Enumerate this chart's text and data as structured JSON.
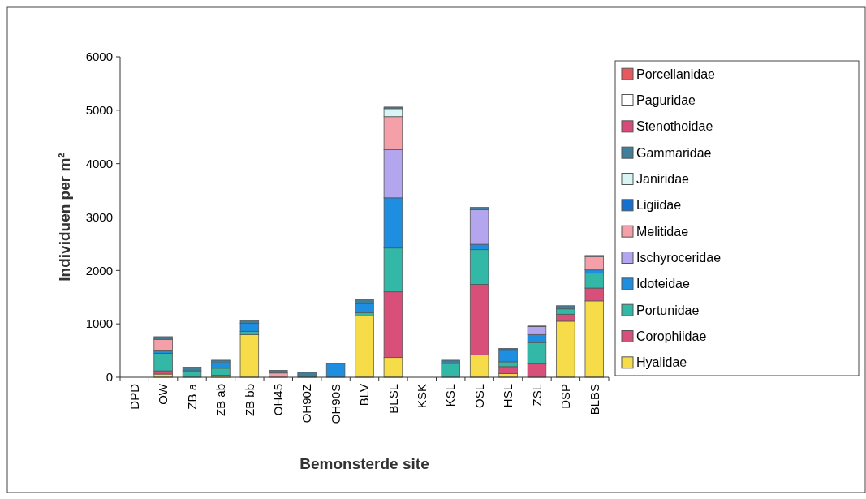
{
  "chart_data": {
    "type": "bar",
    "stacked": true,
    "xlabel": "Bemonsterde site",
    "ylabel": "Individuen per m²",
    "legend": "right",
    "grid": false,
    "categories": [
      "DPD",
      "OW",
      "ZB a",
      "ZB ab",
      "ZB bb",
      "OH45",
      "OH90Z",
      "OH90S",
      "BLV",
      "BLSL",
      "KSK",
      "KSL",
      "OSL",
      "HSL",
      "ZSL",
      "DSP",
      "BLBS"
    ],
    "ylim": [
      0,
      6000
    ],
    "yticks": [
      0,
      1000,
      2000,
      3000,
      4000,
      5000,
      6000
    ],
    "series": [
      {
        "name": "Hyalidae",
        "color": "#f7dc4a",
        "values": [
          0,
          60,
          0,
          40,
          800,
          0,
          0,
          0,
          1150,
          370,
          0,
          0,
          420,
          70,
          0,
          1050,
          1430
        ]
      },
      {
        "name": "Corophiidae",
        "color": "#d8507a",
        "values": [
          0,
          60,
          0,
          0,
          0,
          0,
          0,
          0,
          0,
          1230,
          0,
          0,
          1320,
          130,
          250,
          130,
          240
        ]
      },
      {
        "name": "Portunidae",
        "color": "#33b8a8",
        "values": [
          0,
          330,
          120,
          130,
          60,
          0,
          0,
          0,
          60,
          820,
          0,
          260,
          650,
          90,
          400,
          100,
          280
        ]
      },
      {
        "name": "Idoteidae",
        "color": "#1e8ee0",
        "values": [
          0,
          60,
          0,
          100,
          150,
          0,
          0,
          250,
          170,
          940,
          0,
          0,
          100,
          230,
          150,
          0,
          60
        ]
      },
      {
        "name": "Ischyroceridae",
        "color": "#b4a6ee",
        "values": [
          0,
          0,
          0,
          0,
          0,
          0,
          0,
          0,
          0,
          900,
          0,
          0,
          650,
          0,
          150,
          0,
          0
        ]
      },
      {
        "name": "Melitidae",
        "color": "#f5a0a8",
        "values": [
          0,
          200,
          0,
          0,
          0,
          80,
          0,
          0,
          0,
          620,
          0,
          0,
          0,
          0,
          0,
          0,
          250
        ]
      },
      {
        "name": "Ligiidae",
        "color": "#1570d0",
        "values": [
          0,
          0,
          0,
          0,
          0,
          0,
          0,
          0,
          0,
          0,
          0,
          0,
          0,
          0,
          0,
          0,
          0
        ]
      },
      {
        "name": "Janiridae",
        "color": "#d8f4f4",
        "values": [
          0,
          0,
          0,
          0,
          0,
          0,
          0,
          0,
          0,
          150,
          0,
          0,
          0,
          0,
          0,
          0,
          0
        ]
      },
      {
        "name": "Gammaridae",
        "color": "#3f7f9a",
        "values": [
          0,
          50,
          70,
          50,
          50,
          50,
          90,
          0,
          80,
          30,
          0,
          60,
          40,
          20,
          10,
          60,
          20
        ]
      },
      {
        "name": "Stenothoidae",
        "color": "#d84a7a",
        "values": [
          0,
          0,
          0,
          0,
          0,
          0,
          0,
          0,
          0,
          0,
          0,
          0,
          0,
          0,
          0,
          0,
          0
        ]
      },
      {
        "name": "Paguridae",
        "color": "#ffffff",
        "values": [
          0,
          0,
          0,
          0,
          0,
          0,
          0,
          0,
          0,
          0,
          0,
          0,
          0,
          0,
          0,
          0,
          0
        ]
      },
      {
        "name": "Porcellanidae",
        "color": "#e8585f",
        "values": [
          0,
          0,
          0,
          0,
          0,
          0,
          0,
          0,
          0,
          0,
          0,
          0,
          0,
          0,
          0,
          0,
          0
        ]
      }
    ]
  }
}
